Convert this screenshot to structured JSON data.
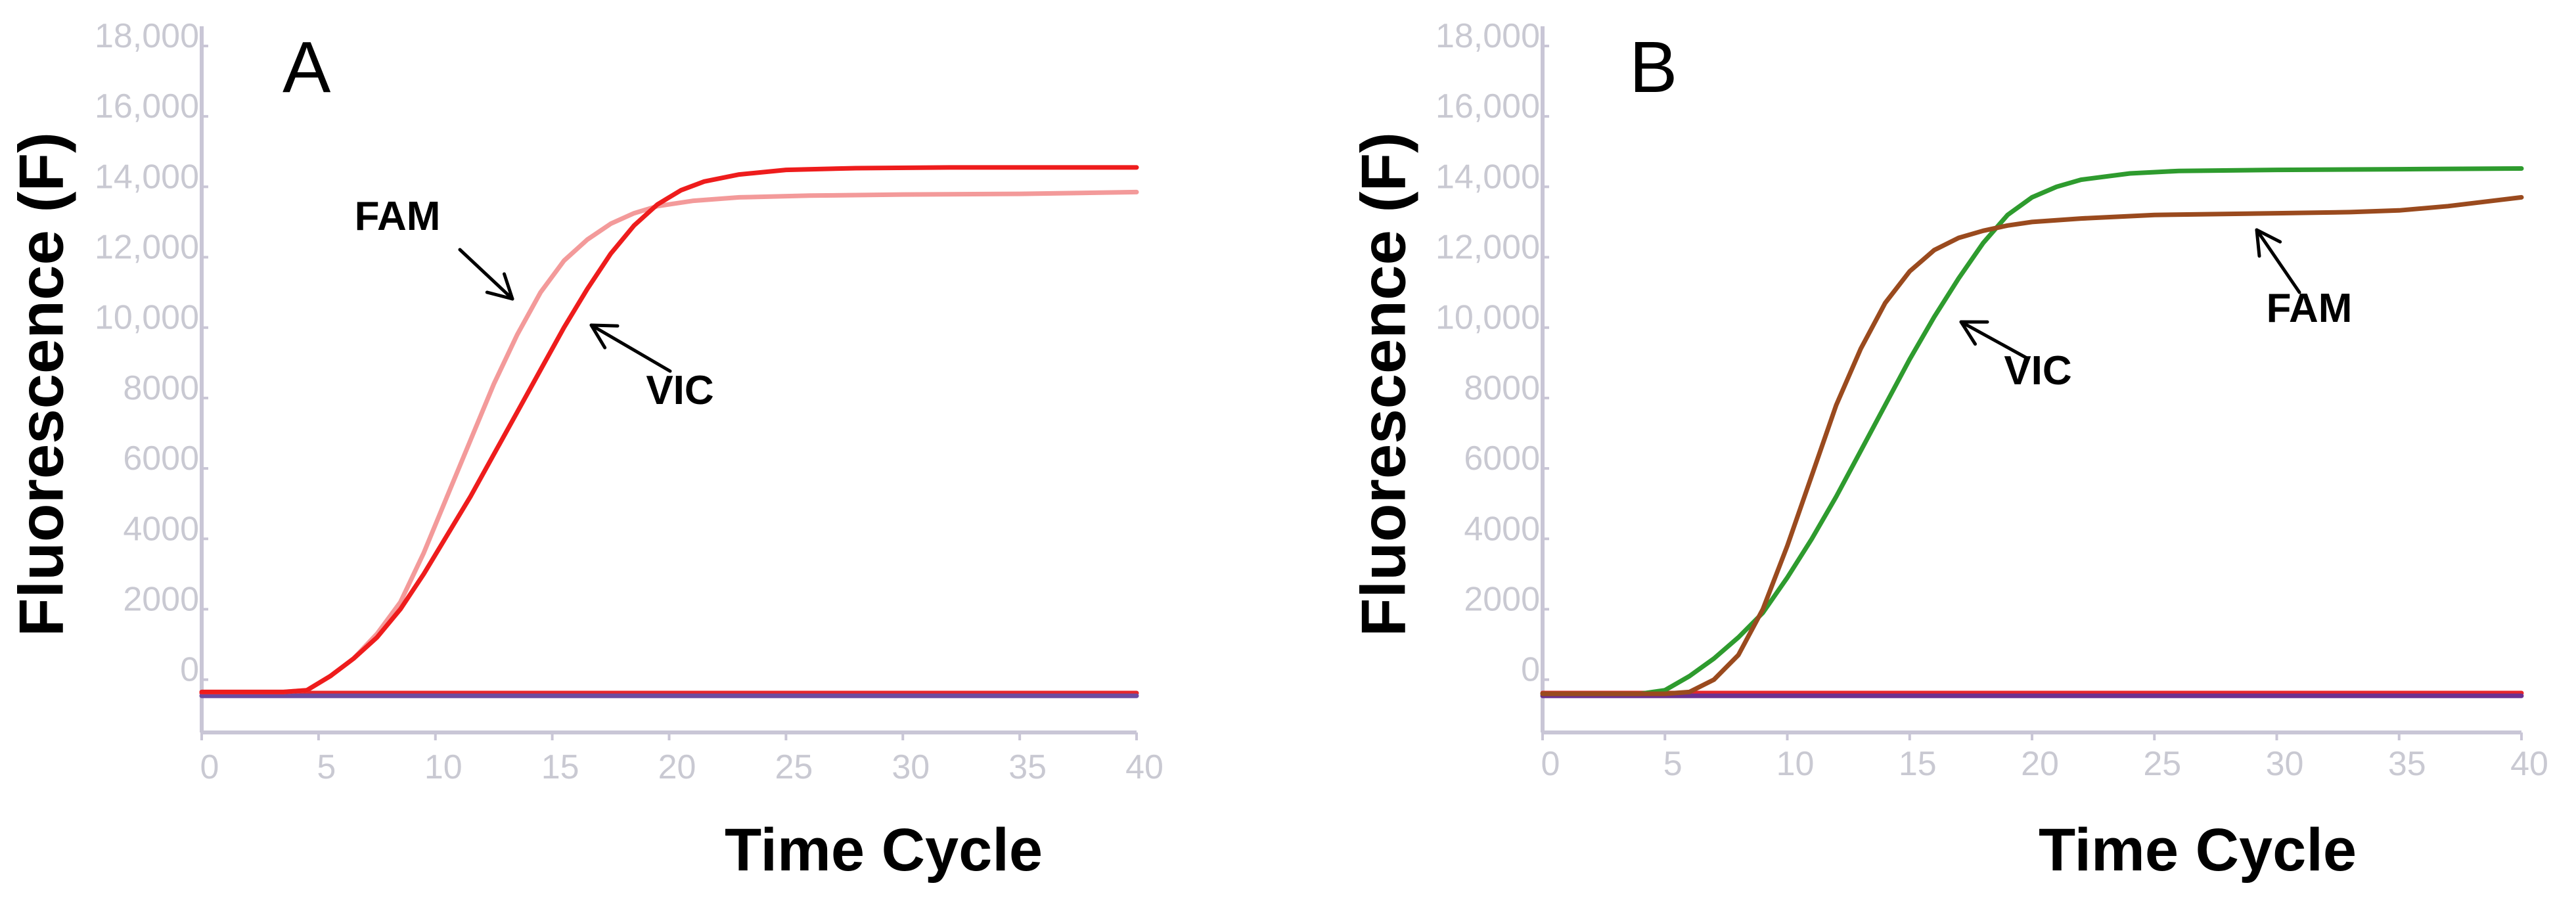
{
  "chart_data": [
    {
      "type": "line",
      "panel_label": "A",
      "xlabel": "Time Cycle",
      "ylabel": "Fluorescence (F)",
      "xlim": [
        0,
        40
      ],
      "ylim": [
        -1500,
        18000
      ],
      "x_ticks": [
        "0",
        "5",
        "10",
        "15",
        "20",
        "25",
        "30",
        "35",
        "40"
      ],
      "y_ticks": [
        "0",
        "2000",
        "4000",
        "6000",
        "8000",
        "10,000",
        "12,000",
        "14,000",
        "16,000",
        "18,000"
      ],
      "series": [
        {
          "name": "FAM",
          "color": "#f39a9a",
          "x": [
            0,
            3.5,
            4.5,
            5.5,
            6.5,
            7.5,
            8.5,
            9.5,
            10.5,
            11.5,
            12.5,
            13.5,
            14.5,
            15.5,
            16.5,
            17.5,
            18.5,
            19.5,
            21,
            23,
            26,
            30,
            35,
            40
          ],
          "y": [
            -350,
            -350,
            -300,
            100,
            600,
            1300,
            2200,
            3600,
            5200,
            6800,
            8400,
            9800,
            11000,
            11900,
            12500,
            12950,
            13250,
            13450,
            13600,
            13700,
            13750,
            13780,
            13800,
            13850
          ]
        },
        {
          "name": "VIC",
          "color": "#ee1c1c",
          "x": [
            0,
            3.5,
            4.5,
            5.5,
            6.5,
            7.5,
            8.5,
            9.5,
            10.5,
            11.5,
            12.5,
            13.5,
            14.5,
            15.5,
            16.5,
            17.5,
            18.5,
            19.5,
            20.5,
            21.5,
            23,
            25,
            28,
            32,
            36,
            40
          ],
          "y": [
            -350,
            -350,
            -300,
            100,
            600,
            1200,
            2000,
            3000,
            4100,
            5200,
            6400,
            7600,
            8800,
            10000,
            11100,
            12100,
            12900,
            13500,
            13900,
            14150,
            14350,
            14480,
            14530,
            14550,
            14550,
            14550
          ]
        },
        {
          "name": "baseline-red",
          "color": "#e5262b",
          "x": [
            0,
            40
          ],
          "y": [
            -380,
            -380
          ]
        },
        {
          "name": "baseline-purple",
          "color": "#6c4ba0",
          "x": [
            0,
            40
          ],
          "y": [
            -460,
            -460
          ]
        }
      ],
      "annotations": [
        {
          "text": "FAM",
          "target": "FAM"
        },
        {
          "text": "VIC",
          "target": "VIC"
        }
      ]
    },
    {
      "type": "line",
      "panel_label": "B",
      "xlabel": "Time Cycle",
      "ylabel": "Fluorescence (F)",
      "xlim": [
        0,
        40
      ],
      "ylim": [
        -1500,
        18000
      ],
      "x_ticks": [
        "0",
        "5",
        "10",
        "15",
        "20",
        "25",
        "30",
        "35",
        "40"
      ],
      "y_ticks": [
        "0",
        "2000",
        "4000",
        "6000",
        "8000",
        "10,000",
        "12,000",
        "14,000",
        "16,000",
        "18,000"
      ],
      "series": [
        {
          "name": "VIC",
          "color": "#2e9b2e",
          "x": [
            0,
            4,
            5,
            6,
            7,
            8,
            9,
            10,
            11,
            12,
            13,
            14,
            15,
            16,
            17,
            18,
            19,
            20,
            21,
            22,
            24,
            26,
            30,
            35,
            40
          ],
          "y": [
            -400,
            -400,
            -300,
            100,
            600,
            1200,
            1900,
            2900,
            4000,
            5200,
            6500,
            7800,
            9100,
            10300,
            11400,
            12400,
            13200,
            13700,
            14000,
            14200,
            14380,
            14450,
            14480,
            14500,
            14520
          ]
        },
        {
          "name": "FAM",
          "color": "#9a4a1e",
          "x": [
            0,
            5,
            6,
            7,
            8,
            9,
            10,
            11,
            12,
            13,
            14,
            15,
            16,
            17,
            18,
            19,
            20,
            22,
            25,
            30,
            33,
            35,
            37,
            40
          ],
          "y": [
            -400,
            -400,
            -350,
            0,
            700,
            2000,
            3800,
            5800,
            7800,
            9400,
            10700,
            11600,
            12200,
            12550,
            12750,
            12900,
            13000,
            13100,
            13200,
            13250,
            13280,
            13330,
            13450,
            13700
          ]
        },
        {
          "name": "baseline-red",
          "color": "#e5262b",
          "x": [
            0,
            40
          ],
          "y": [
            -380,
            -380
          ]
        },
        {
          "name": "baseline-purple",
          "color": "#6c3090",
          "x": [
            0,
            40
          ],
          "y": [
            -460,
            -460
          ]
        }
      ],
      "annotations": [
        {
          "text": "VIC",
          "target": "VIC"
        },
        {
          "text": "FAM",
          "target": "FAM"
        }
      ]
    }
  ]
}
